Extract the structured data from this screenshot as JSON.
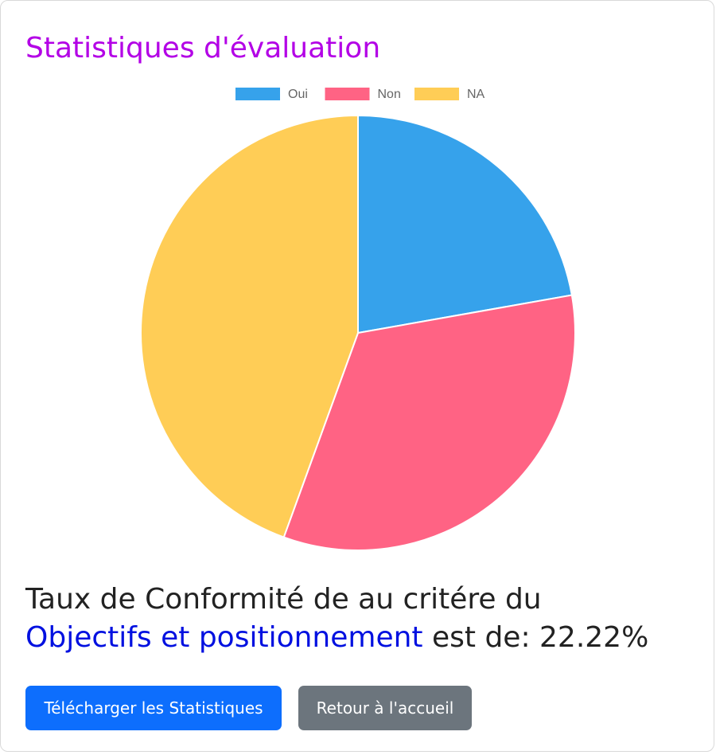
{
  "page": {
    "title": "Statistiques d'évaluation"
  },
  "chart_data": {
    "type": "pie",
    "title": "",
    "categories": [
      "Oui",
      "Non",
      "NA"
    ],
    "values": [
      22.22,
      33.33,
      44.45
    ],
    "colors": [
      "#36a2eb",
      "#ff6384",
      "#ffcd56"
    ],
    "legend_position": "top"
  },
  "result": {
    "line1": "Taux de Conformité de au critére du",
    "criterion": "Objectifs et positionnement",
    "suffix": " est de: 22.22%"
  },
  "actions": {
    "download_label": "Télécharger les Statistiques",
    "home_label": "Retour à l'accueil"
  }
}
